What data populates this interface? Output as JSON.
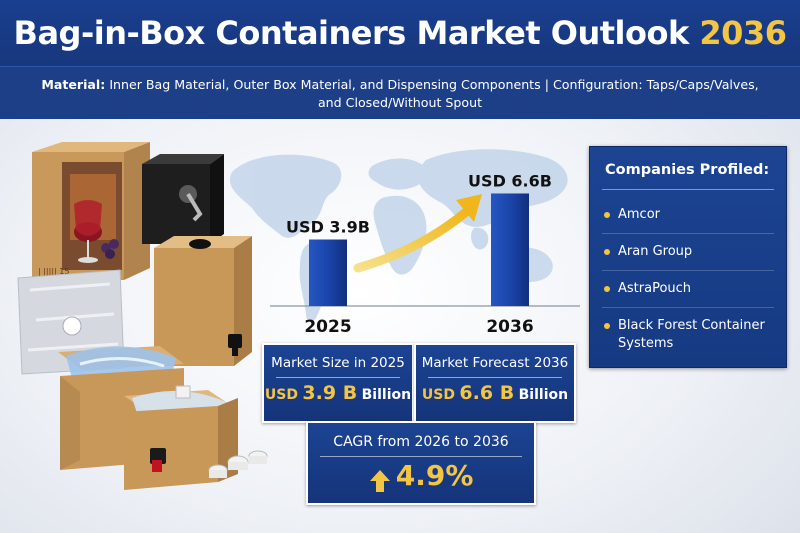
{
  "header": {
    "title_main": "Bag-in-Box Containers Market Outlook",
    "title_year": "2036",
    "subtitle_material_label": "Material:",
    "subtitle_material_text": "Inner Bag Material, Outer Box Material, and Dispensing Components",
    "subtitle_separator": "|",
    "subtitle_config_text": "Configuration: Taps/Caps/Valves, and Closed/Without Spout"
  },
  "chart_data": {
    "type": "bar",
    "categories": [
      "2025",
      "2036"
    ],
    "values": [
      3.9,
      6.6
    ],
    "data_labels": [
      "USD 3.9B",
      "USD 6.6B"
    ],
    "ylim": [
      0,
      8
    ],
    "grid": false
  },
  "stats": {
    "market_size": {
      "label": "Market Size in 2025",
      "prefix": "USD",
      "value": "3.9 B",
      "unit": "Billion"
    },
    "forecast": {
      "label": "Market Forecast 2036",
      "prefix": "USD",
      "value": "6.6 B",
      "unit": "Billion"
    },
    "cagr": {
      "label": "CAGR from 2026 to 2036",
      "value": "4.9%"
    }
  },
  "companies": {
    "heading": "Companies Profiled:",
    "items": [
      "Amcor",
      "Aran Group",
      "AstraPouch",
      "Black Forest Container Systems"
    ]
  },
  "illustration": {
    "wine_box_print": "| ||||| 15"
  },
  "colors": {
    "navy": "#17367c",
    "accent_gold": "#f4c542",
    "bar_blue": "#1a43a6",
    "map_blue": "#b9cde6"
  }
}
